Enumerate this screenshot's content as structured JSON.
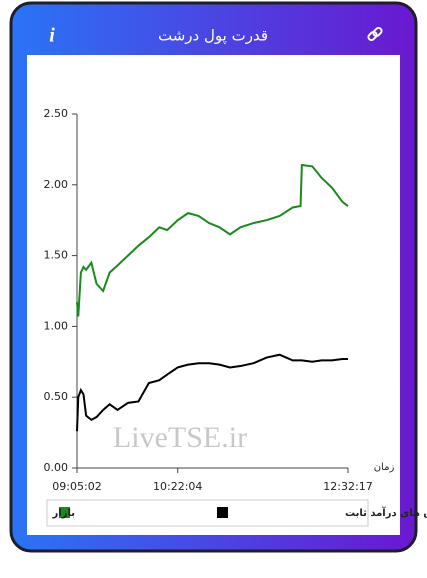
{
  "header": {
    "title": "قدرت پول درشت",
    "info": "i"
  },
  "chart_data": {
    "type": "line",
    "watermark": "LiveTSE.ir",
    "x_label": "زمان",
    "x": [
      "09:05:02",
      "09:06:00",
      "09:08:00",
      "09:10:00",
      "09:12:00",
      "09:16:00",
      "09:20:00",
      "09:25:00",
      "09:30:00",
      "09:36:00",
      "09:44:00",
      "09:52:00",
      "10:00:00",
      "10:08:00",
      "10:14:00",
      "10:22:04",
      "10:30:00",
      "10:38:00",
      "10:46:00",
      "10:54:00",
      "11:02:00",
      "11:10:00",
      "11:20:00",
      "11:30:00",
      "11:40:00",
      "11:50:00",
      "11:56:00",
      "11:57:00",
      "12:05:00",
      "12:12:00",
      "12:20:00",
      "12:28:00",
      "12:32:17"
    ],
    "series": [
      {
        "name": "بازار",
        "color": "#1a8a1a",
        "values": [
          1.17,
          1.07,
          1.38,
          1.42,
          1.4,
          1.45,
          1.3,
          1.25,
          1.38,
          1.43,
          1.5,
          1.57,
          1.63,
          1.7,
          1.68,
          1.75,
          1.8,
          1.78,
          1.73,
          1.7,
          1.65,
          1.7,
          1.73,
          1.75,
          1.78,
          1.84,
          1.85,
          2.14,
          2.13,
          2.05,
          1.98,
          1.88,
          1.85
        ]
      },
      {
        "name": "صندوق های درآمد ثابت",
        "color": "#000000",
        "values": [
          0.26,
          0.5,
          0.55,
          0.52,
          0.37,
          0.34,
          0.36,
          0.41,
          0.45,
          0.41,
          0.46,
          0.47,
          0.6,
          0.62,
          0.66,
          0.71,
          0.73,
          0.74,
          0.74,
          0.73,
          0.71,
          0.72,
          0.74,
          0.78,
          0.8,
          0.76,
          0.76,
          0.76,
          0.75,
          0.76,
          0.76,
          0.77,
          0.77
        ]
      }
    ],
    "xlim": [
      "09:05:02",
      "12:32:17"
    ],
    "xticks": [
      "09:05:02",
      "10:22:04",
      "12:32:17"
    ],
    "ylim": [
      0,
      2.5
    ],
    "yticks": [
      {
        "value": 0,
        "label": "0.00"
      },
      {
        "value": 0.5,
        "label": "0.50"
      },
      {
        "value": 1,
        "label": "1.00"
      },
      {
        "value": 1.5,
        "label": "1.50"
      },
      {
        "value": 2,
        "label": "2.00"
      },
      {
        "value": 2.5,
        "label": "2.50"
      }
    ]
  }
}
